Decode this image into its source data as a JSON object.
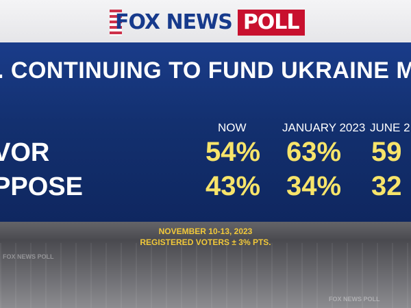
{
  "brand": {
    "fox": "FOX NEWS",
    "poll": "POLL"
  },
  "headline": ". CONTINUING TO FUND UKRAINE MILITA",
  "columns": [
    "NOW",
    "JANUARY 2023",
    "JUNE 2"
  ],
  "rows": [
    {
      "label": "VOR",
      "values": [
        "54%",
        "63%",
        "59"
      ]
    },
    {
      "label": "PPOSE",
      "values": [
        "43%",
        "34%",
        "32"
      ]
    }
  ],
  "footer": {
    "dates": "NOVEMBER 10-13, 2023",
    "sample": "REGISTERED VOTERS ± 3% PTS."
  },
  "ghost": {
    "left": "FOX NEWS POLL",
    "right": "FOX NEWS POLL"
  }
}
